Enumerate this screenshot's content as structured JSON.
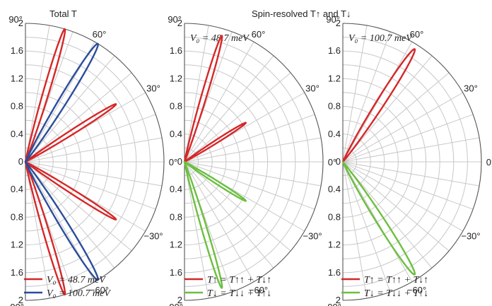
{
  "titles": {
    "left": "Total T",
    "right": "Spin-resolved T↑ and T↓"
  },
  "panel_labels": [
    "",
    "V₀ = 48.7 meV",
    "V₀ = 100.7 meV"
  ],
  "radial_ticks": [
    "2",
    "1.6",
    "1.2",
    "0.8",
    "0.4",
    "0",
    "0.4",
    "0.8",
    "1.2",
    "1.6",
    "2"
  ],
  "angle_ticks": [
    "90°",
    "60°",
    "30°",
    "0°",
    "−30°",
    "−60°",
    "−90°"
  ],
  "legends": [
    [
      "V₀ = 48.7 meV",
      "V₀ = 100.7 meV"
    ],
    [
      "T↑ = T↑↑ + T↓↑",
      "T↓ = T↓↓ + T↑↓"
    ],
    [
      "T↑ = T↑↑ + T↓↑",
      "T↓ = T↓↓ + T↑↓"
    ]
  ],
  "colors": {
    "red": "#d62728",
    "blue": "#2b4d9c",
    "green": "#6cbf3f",
    "grid": "#c8c8c8",
    "axis": "#555555"
  },
  "chart_data": [
    {
      "type": "polar",
      "rmax": 2,
      "theta_range_deg": [
        -90,
        90
      ],
      "series": [
        {
          "name": "V₀ = 48.7 meV",
          "color": "red",
          "lobes": [
            {
              "angle_deg": 73.5,
              "peak": 2.0,
              "width_deg": 2.0
            },
            {
              "angle_deg": 32.5,
              "peak": 1.55,
              "width_deg": 2.0
            },
            {
              "angle_deg": -32.5,
              "peak": 1.55,
              "width_deg": 2.0
            },
            {
              "angle_deg": -73.5,
              "peak": 2.0,
              "width_deg": 2.0
            }
          ]
        },
        {
          "name": "V₀ = 100.7 meV",
          "color": "blue",
          "lobes": [
            {
              "angle_deg": 58.5,
              "peak": 2.0,
              "width_deg": 2.8
            },
            {
              "angle_deg": -58.5,
              "peak": 2.0,
              "width_deg": 2.8
            }
          ]
        }
      ]
    },
    {
      "type": "polar",
      "rmax": 2,
      "theta_range_deg": [
        -90,
        90
      ],
      "series": [
        {
          "name": "T↑ = T↑↑ + T↓↑",
          "color": "red",
          "lobes": [
            {
              "angle_deg": 73.5,
              "peak": 1.9,
              "width_deg": 1.9
            },
            {
              "angle_deg": 32.5,
              "peak": 1.05,
              "width_deg": 2.0
            }
          ]
        },
        {
          "name": "T↓ = T↓↓ + T↑↓",
          "color": "green",
          "lobes": [
            {
              "angle_deg": -32.5,
              "peak": 1.05,
              "width_deg": 2.0
            },
            {
              "angle_deg": -73.5,
              "peak": 1.9,
              "width_deg": 1.9
            }
          ]
        }
      ]
    },
    {
      "type": "polar",
      "rmax": 2,
      "theta_range_deg": [
        -90,
        90
      ],
      "series": [
        {
          "name": "T↑ = T↑↑ + T↓↑",
          "color": "red",
          "lobes": [
            {
              "angle_deg": 57.5,
              "peak": 1.93,
              "width_deg": 2.9
            }
          ]
        },
        {
          "name": "T↓ = T↓↓ + T↑↓",
          "color": "green",
          "lobes": [
            {
              "angle_deg": -57.5,
              "peak": 1.93,
              "width_deg": 2.9
            }
          ]
        }
      ]
    }
  ]
}
